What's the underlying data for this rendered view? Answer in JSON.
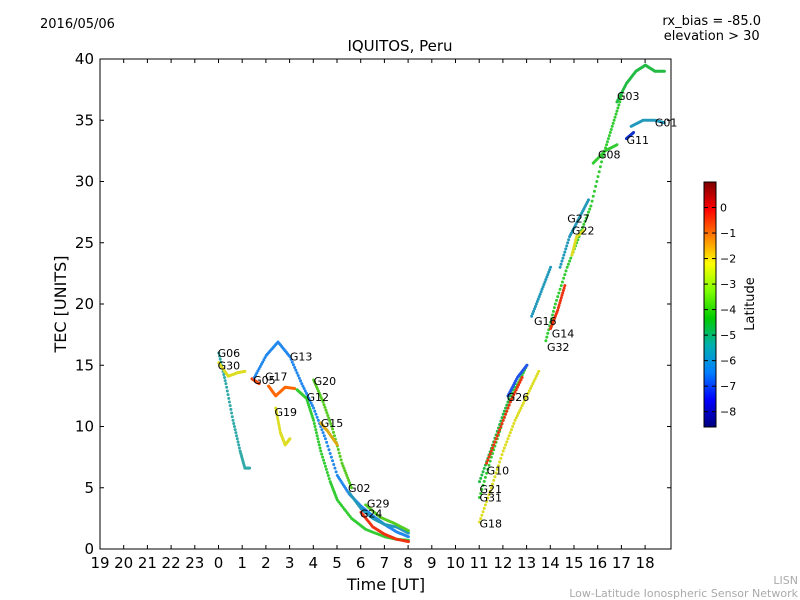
{
  "header": {
    "date": "2016/05/06",
    "title": "IQUITOS, Peru",
    "info_lines": [
      "rx_bias = -85.0",
      "elevation > 30"
    ]
  },
  "footer": {
    "lines": [
      "LISN",
      "Low-Latitude Ionospheric Sensor Network"
    ]
  },
  "chart_data": {
    "type": "scatter",
    "title": "IQUITOS, Peru",
    "xlabel": "Time [UT]",
    "ylabel": "TEC [UNITS]",
    "x_ticks": [
      "19",
      "20",
      "21",
      "22",
      "23",
      "0",
      "1",
      "2",
      "3",
      "4",
      "5",
      "6",
      "7",
      "8",
      "9",
      "10",
      "11",
      "12",
      "13",
      "14",
      "15",
      "16",
      "17",
      "18"
    ],
    "ylim": [
      0,
      40
    ],
    "y_ticks": [
      0,
      5,
      10,
      15,
      20,
      25,
      30,
      35,
      40
    ],
    "colorbar": {
      "label": "Latitude",
      "range": [
        -8.6,
        1.0
      ],
      "ticks": [
        0,
        -1,
        -2,
        -3,
        -4,
        -5,
        -6,
        -7,
        -8
      ],
      "colors": [
        "#00007f",
        "#0000ff",
        "#007fff",
        "#00b0b0",
        "#00cc00",
        "#7fff00",
        "#ffff00",
        "#ff7f00",
        "#ff0000",
        "#7f0000"
      ]
    },
    "series": [
      {
        "name": "G06",
        "color": "#33aaaa",
        "points": [
          [
            0.0,
            16.0
          ],
          [
            0.3,
            13.5
          ],
          [
            0.6,
            10.5
          ],
          [
            0.9,
            8.0
          ],
          [
            1.1,
            6.6
          ],
          [
            1.3,
            6.6
          ]
        ]
      },
      {
        "name": "G30",
        "color": "#dddd22",
        "points": [
          [
            0.0,
            15.2
          ],
          [
            0.4,
            14.1
          ],
          [
            0.8,
            14.4
          ],
          [
            1.1,
            14.5
          ]
        ]
      },
      {
        "name": "G05",
        "color": "#ee4411",
        "points": [
          [
            1.4,
            13.9
          ],
          [
            1.7,
            13.5
          ]
        ]
      },
      {
        "name": "G17",
        "color": "#ff6600",
        "points": [
          [
            2.1,
            13.3
          ],
          [
            2.4,
            12.5
          ],
          [
            2.8,
            13.2
          ],
          [
            3.2,
            13.1
          ]
        ]
      },
      {
        "name": "G19",
        "color": "#dddd22",
        "points": [
          [
            2.4,
            11.5
          ],
          [
            2.6,
            9.5
          ],
          [
            2.8,
            8.5
          ],
          [
            3.0,
            9.0
          ]
        ]
      },
      {
        "name": "G13",
        "color": "#2288ee",
        "points": [
          [
            1.5,
            14.0
          ],
          [
            2.0,
            15.8
          ],
          [
            2.5,
            16.9
          ],
          [
            3.0,
            15.7
          ],
          [
            3.5,
            13.5
          ],
          [
            4.0,
            11.5
          ],
          [
            4.5,
            9.0
          ],
          [
            5.0,
            6.0
          ],
          [
            5.5,
            4.5
          ],
          [
            6.0,
            3.5
          ],
          [
            6.5,
            2.7
          ],
          [
            7.0,
            2.0
          ],
          [
            7.5,
            1.4
          ],
          [
            8.0,
            1.0
          ]
        ]
      },
      {
        "name": "G12",
        "color": "#33cc33",
        "points": [
          [
            3.3,
            13.0
          ],
          [
            3.7,
            12.3
          ],
          [
            4.0,
            10.5
          ],
          [
            4.3,
            8.0
          ],
          [
            4.7,
            5.5
          ],
          [
            5.0,
            4.0
          ],
          [
            5.6,
            2.5
          ],
          [
            6.2,
            1.6
          ],
          [
            7.0,
            1.0
          ],
          [
            7.5,
            0.8
          ],
          [
            8.0,
            0.7
          ]
        ]
      },
      {
        "name": "G20",
        "color": "#55cc22",
        "points": [
          [
            4.0,
            13.8
          ],
          [
            4.4,
            12.0
          ],
          [
            4.8,
            9.8
          ],
          [
            5.2,
            7.0
          ],
          [
            5.6,
            5.0
          ]
        ]
      },
      {
        "name": "G15",
        "color": "#ddaa11",
        "points": [
          [
            4.3,
            10.3
          ],
          [
            4.6,
            9.6
          ],
          [
            5.0,
            8.5
          ]
        ]
      },
      {
        "name": "G02",
        "color": "#2299bb",
        "points": [
          [
            5.5,
            4.6
          ],
          [
            6.0,
            3.3
          ],
          [
            6.5,
            2.5
          ],
          [
            7.0,
            2.0
          ],
          [
            7.5,
            1.8
          ],
          [
            8.0,
            1.3
          ]
        ]
      },
      {
        "name": "G29",
        "color": "#55cc22",
        "points": [
          [
            6.2,
            3.6
          ],
          [
            6.8,
            2.6
          ],
          [
            7.4,
            2.1
          ],
          [
            8.0,
            1.5
          ]
        ]
      },
      {
        "name": "G24",
        "color": "#ee3311",
        "points": [
          [
            6.0,
            3.0
          ],
          [
            6.5,
            1.8
          ],
          [
            7.0,
            1.2
          ],
          [
            7.5,
            0.8
          ],
          [
            8.0,
            0.6
          ]
        ]
      },
      {
        "name": "G18",
        "color": "#dddd22",
        "points": [
          [
            11.0,
            2.2
          ],
          [
            11.5,
            5.0
          ],
          [
            12.0,
            8.0
          ],
          [
            12.5,
            10.5
          ],
          [
            13.0,
            12.5
          ],
          [
            13.5,
            14.5
          ]
        ]
      },
      {
        "name": "G31",
        "color": "#33cc33",
        "points": [
          [
            11.0,
            4.2
          ],
          [
            11.5,
            7.5
          ],
          [
            12.0,
            10.5
          ],
          [
            12.5,
            13.0
          ],
          [
            13.0,
            15.0
          ]
        ]
      },
      {
        "name": "G21",
        "color": "#22bb44",
        "points": [
          [
            11.0,
            5.5
          ],
          [
            11.5,
            8.2
          ],
          [
            12.0,
            11.0
          ],
          [
            12.5,
            13.5
          ]
        ]
      },
      {
        "name": "G10",
        "color": "#ee3311",
        "points": [
          [
            11.3,
            7.0
          ],
          [
            11.8,
            9.5
          ],
          [
            12.3,
            12.0
          ],
          [
            12.8,
            14.0
          ]
        ]
      },
      {
        "name": "G26",
        "color": "#2255ee",
        "points": [
          [
            12.2,
            12.5
          ],
          [
            12.6,
            14.0
          ],
          [
            13.0,
            15.0
          ]
        ]
      },
      {
        "name": "G16",
        "color": "#2299bb",
        "points": [
          [
            13.2,
            19.0
          ],
          [
            13.6,
            21.0
          ],
          [
            14.0,
            23.0
          ]
        ]
      },
      {
        "name": "G32",
        "color": "#33cc33",
        "points": [
          [
            13.8,
            17.0
          ],
          [
            14.2,
            20.0
          ],
          [
            14.7,
            23.0
          ],
          [
            15.2,
            25.5
          ],
          [
            15.7,
            28.0
          ],
          [
            16.2,
            32.0
          ],
          [
            16.6,
            34.5
          ],
          [
            17.0,
            37.0
          ]
        ]
      },
      {
        "name": "G14",
        "color": "#ee3311",
        "points": [
          [
            14.0,
            18.0
          ],
          [
            14.3,
            19.5
          ],
          [
            14.6,
            21.5
          ]
        ]
      },
      {
        "name": "G22",
        "color": "#dddd22",
        "points": [
          [
            14.9,
            24.0
          ],
          [
            15.1,
            25.5
          ],
          [
            15.4,
            26.0
          ]
        ]
      },
      {
        "name": "G27",
        "color": "#2299bb",
        "points": [
          [
            14.4,
            23.0
          ],
          [
            14.8,
            25.5
          ],
          [
            15.2,
            27.0
          ],
          [
            15.6,
            28.5
          ]
        ]
      },
      {
        "name": "G08",
        "color": "#33cc33",
        "points": [
          [
            15.8,
            31.5
          ],
          [
            16.3,
            32.5
          ],
          [
            16.8,
            33.0
          ]
        ]
      },
      {
        "name": "G03",
        "color": "#22bb44",
        "points": [
          [
            16.8,
            36.5
          ],
          [
            17.2,
            38.0
          ],
          [
            17.6,
            39.0
          ],
          [
            18.0,
            39.5
          ],
          [
            18.4,
            39.0
          ],
          [
            18.8,
            39.0
          ]
        ]
      },
      {
        "name": "G01",
        "color": "#2299bb",
        "points": [
          [
            17.4,
            34.5
          ],
          [
            17.9,
            35.0
          ],
          [
            18.4,
            35.0
          ],
          [
            18.8,
            34.8
          ]
        ]
      },
      {
        "name": "G11",
        "color": "#1133cc",
        "points": [
          [
            17.2,
            33.5
          ],
          [
            17.5,
            34.0
          ]
        ]
      }
    ],
    "labels": [
      {
        "text": "G06",
        "x": -0.05,
        "y": 16.0
      },
      {
        "text": "G30",
        "x": -0.05,
        "y": 15.0
      },
      {
        "text": "G05",
        "x": 1.45,
        "y": 13.8
      },
      {
        "text": "G17",
        "x": 1.95,
        "y": 14.1
      },
      {
        "text": "G19",
        "x": 2.35,
        "y": 11.2
      },
      {
        "text": "G13",
        "x": 3.0,
        "y": 15.7
      },
      {
        "text": "G20",
        "x": 4.0,
        "y": 13.7
      },
      {
        "text": "G12",
        "x": 3.7,
        "y": 12.4
      },
      {
        "text": "G15",
        "x": 4.3,
        "y": 10.3
      },
      {
        "text": "G02",
        "x": 5.45,
        "y": 5.0
      },
      {
        "text": "G29",
        "x": 6.25,
        "y": 3.7
      },
      {
        "text": "G24",
        "x": 5.95,
        "y": 2.9
      },
      {
        "text": "G10",
        "x": 11.3,
        "y": 6.4
      },
      {
        "text": "G21",
        "x": 11.0,
        "y": 4.9
      },
      {
        "text": "G31",
        "x": 11.0,
        "y": 4.2
      },
      {
        "text": "G18",
        "x": 11.0,
        "y": 2.1
      },
      {
        "text": "G26",
        "x": 12.15,
        "y": 12.4
      },
      {
        "text": "G16",
        "x": 13.3,
        "y": 18.6
      },
      {
        "text": "G14",
        "x": 14.05,
        "y": 17.6
      },
      {
        "text": "G32",
        "x": 13.85,
        "y": 16.5
      },
      {
        "text": "G27",
        "x": 14.7,
        "y": 27.0
      },
      {
        "text": "G22",
        "x": 14.9,
        "y": 26.0
      },
      {
        "text": "G08",
        "x": 16.0,
        "y": 32.2
      },
      {
        "text": "G03",
        "x": 16.8,
        "y": 37.0
      },
      {
        "text": "G11",
        "x": 17.2,
        "y": 33.4
      },
      {
        "text": "G01",
        "x": 18.4,
        "y": 34.8
      }
    ]
  }
}
